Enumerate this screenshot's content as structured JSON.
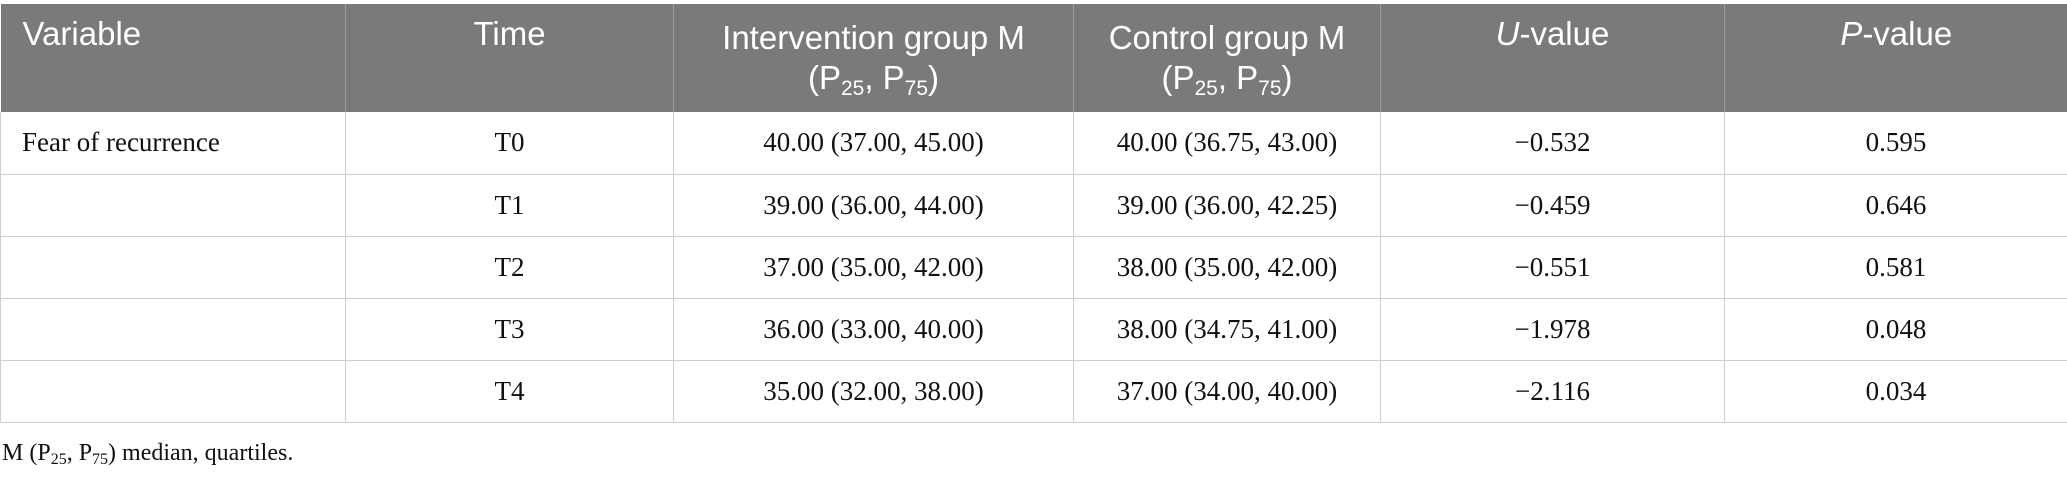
{
  "table": {
    "headers": {
      "variable": "Variable",
      "time": "Time",
      "intervention": {
        "main": "Intervention group M (P",
        "sub1": "25",
        "mid": ", P",
        "sub2": "75",
        "end": ")"
      },
      "control": {
        "main": "Control group M (P",
        "sub1": "25",
        "mid": ", P",
        "sub2": "75",
        "end": ")"
      },
      "u_value": {
        "italic": "U",
        "rest": "-value"
      },
      "p_value": {
        "italic": "P",
        "rest": "-value"
      }
    },
    "rows": [
      {
        "variable": "Fear of recurrence",
        "time": "T0",
        "intervention": "40.00 (37.00, 45.00)",
        "control": "40.00 (36.75, 43.00)",
        "u": "−0.532",
        "p": "0.595"
      },
      {
        "variable": "",
        "time": "T1",
        "intervention": "39.00 (36.00, 44.00)",
        "control": "39.00 (36.00, 42.25)",
        "u": "−0.459",
        "p": "0.646"
      },
      {
        "variable": "",
        "time": "T2",
        "intervention": "37.00 (35.00, 42.00)",
        "control": "38.00 (35.00, 42.00)",
        "u": "−0.551",
        "p": "0.581"
      },
      {
        "variable": "",
        "time": "T3",
        "intervention": "36.00 (33.00, 40.00)",
        "control": "38.00 (34.75, 41.00)",
        "u": "−1.978",
        "p": "0.048"
      },
      {
        "variable": "",
        "time": "T4",
        "intervention": "35.00 (32.00, 38.00)",
        "control": "37.00 (34.00, 40.00)",
        "u": "−2.116",
        "p": "0.034"
      }
    ]
  },
  "footnote": {
    "pre": "M (P",
    "sub1": "25",
    "mid": ", P",
    "sub2": "75",
    "post": ") median, quartiles."
  },
  "colors": {
    "header_bg": "#7a7a7a",
    "header_text": "#ffffff",
    "grid": "#cfcfcf"
  }
}
